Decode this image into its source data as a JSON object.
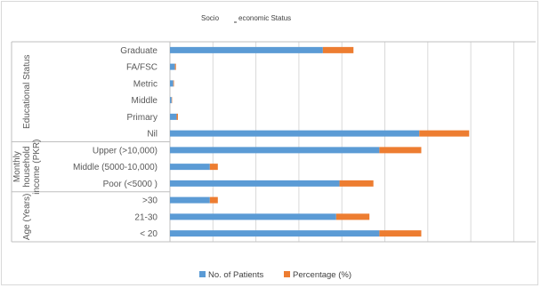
{
  "chart_data": {
    "type": "bar",
    "orientation": "horizontal",
    "stacked": true,
    "title_part1": "Socio",
    "title_part2": "economic Status",
    "groups": [
      {
        "label": "Educational Status",
        "categories": [
          "Graduate",
          "FA/FSC",
          "Metric",
          "Middle",
          "Primary",
          "Nil"
        ]
      },
      {
        "label_lines": [
          "Monthly",
          "household",
          "income (PKR)"
        ],
        "categories": [
          "Upper (>10,000)",
          "Middle (5000-10,000)",
          "Poor (<5000 )"
        ]
      },
      {
        "label": "Age (Years)",
        "categories": [
          ">30",
          "21-30",
          "< 20"
        ]
      }
    ],
    "categories": [
      "Graduate",
      "FA/FSC",
      "Metric",
      "Middle",
      "Primary",
      "Nil",
      "Upper (>10,000)",
      "Middle (5000-10,000)",
      "Poor (<5000 )",
      ">30",
      "21-30",
      "< 20"
    ],
    "series": [
      {
        "name": "No. of Patients",
        "color": "#5b9bd5",
        "values": [
          46,
          1.5,
          1,
          0.5,
          2,
          75,
          63,
          12,
          51,
          12,
          50,
          63
        ]
      },
      {
        "name": "Percentage (%)",
        "color": "#ed7d31",
        "values": [
          9.2,
          0.3,
          0.2,
          0.1,
          0.4,
          15,
          12.6,
          2.4,
          10.2,
          2.4,
          10,
          12.6
        ]
      }
    ],
    "xlim": [
      0,
      110
    ],
    "grid": true,
    "legend_position": "bottom"
  }
}
